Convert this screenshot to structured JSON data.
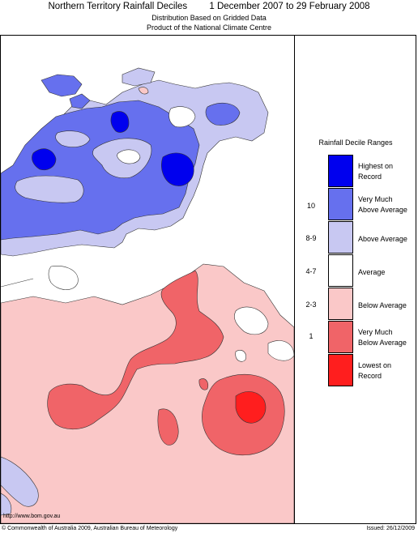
{
  "header": {
    "title_left": "Northern Territory Rainfall Deciles",
    "title_right": "1 December 2007 to 29 February 2008",
    "subtitle1": "Distribution Based on Gridded Data",
    "subtitle2": "Product of the National Climate Centre"
  },
  "legend": {
    "title": "Rainfall Decile Ranges",
    "items": [
      {
        "range": "",
        "label_line1": "Highest on",
        "label_line2": "Record",
        "color": "#0000ee"
      },
      {
        "range": "10",
        "label_line1": "Very Much",
        "label_line2": "Above Average",
        "color": "#6670ee"
      },
      {
        "range": "8-9",
        "label_line1": "Above Average",
        "label_line2": "",
        "color": "#c8c8f2"
      },
      {
        "range": "4-7",
        "label_line1": "Average",
        "label_line2": "",
        "color": "#ffffff"
      },
      {
        "range": "2-3",
        "label_line1": "Below Average",
        "label_line2": "",
        "color": "#fac8c8"
      },
      {
        "range": "1",
        "label_line1": "Very Much",
        "label_line2": "Below Average",
        "color": "#f06468"
      },
      {
        "range": "",
        "label_line1": "Lowest on",
        "label_line2": "Record",
        "color": "#ff1e1e"
      }
    ]
  },
  "footer": {
    "url": "http://www.bom.gov.au",
    "copyright": "© Commonwealth of Australia 2009, Australian Bureau of Meteorology",
    "issued": "Issued: 26/12/2009"
  }
}
